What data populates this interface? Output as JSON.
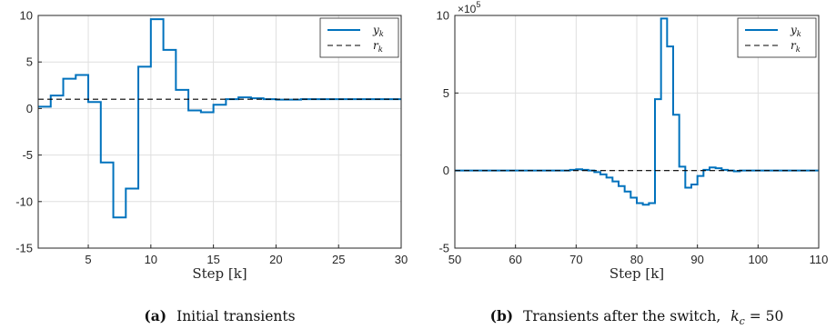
{
  "chart_data": [
    {
      "type": "line",
      "step": true,
      "xlabel": "Step [k]",
      "caption_label": "(a)",
      "caption_text": "Initial transients",
      "xlim": [
        1,
        30
      ],
      "ylim": [
        -15,
        10
      ],
      "xticks": [
        5,
        10,
        15,
        20,
        25,
        30
      ],
      "yticks": [
        10,
        5,
        0,
        -5,
        -10,
        -15
      ],
      "grid": true,
      "legend_position": "top-right",
      "series": [
        {
          "name": "y",
          "name_sub": "k",
          "style": "solid",
          "color": "#0072BD",
          "x": [
            1,
            2,
            3,
            4,
            5,
            6,
            7,
            8,
            9,
            10,
            11,
            12,
            13,
            14,
            15,
            16,
            17,
            18,
            19,
            20,
            21,
            22,
            23,
            24,
            25,
            26,
            27,
            28,
            29,
            30
          ],
          "y": [
            0.2,
            1.4,
            3.2,
            3.6,
            0.7,
            -5.8,
            -11.7,
            -8.6,
            4.5,
            9.6,
            6.3,
            2.0,
            -0.2,
            -0.4,
            0.4,
            1.0,
            1.2,
            1.1,
            1.0,
            0.95,
            0.95,
            1.0,
            1.0,
            1.0,
            1.0,
            1.0,
            1.0,
            1.0,
            1.0,
            1.0
          ]
        },
        {
          "name": "r",
          "name_sub": "k",
          "style": "dashed",
          "color": "#000000",
          "x": [
            1,
            30
          ],
          "y": [
            1,
            1
          ]
        }
      ]
    },
    {
      "type": "line",
      "step": true,
      "xlabel": "Step [k]",
      "caption_label": "(b)",
      "caption_text": "Transients after the switch,",
      "caption_math_var": "k",
      "caption_math_sub": "c",
      "caption_math_rest": " = 50",
      "exponent_base": "×10",
      "exponent_power": "5",
      "xlim": [
        50,
        110
      ],
      "ylim": [
        -5,
        10
      ],
      "xticks": [
        50,
        60,
        70,
        80,
        90,
        100,
        110
      ],
      "yticks": [
        10,
        5,
        0,
        -5
      ],
      "grid": true,
      "legend_position": "top-right",
      "series": [
        {
          "name": "y",
          "name_sub": "k",
          "style": "solid",
          "color": "#0072BD",
          "x": [
            50,
            51,
            52,
            53,
            54,
            55,
            56,
            57,
            58,
            59,
            60,
            61,
            62,
            63,
            64,
            65,
            66,
            67,
            68,
            69,
            70,
            71,
            72,
            73,
            74,
            75,
            76,
            77,
            78,
            79,
            80,
            81,
            82,
            83,
            84,
            85,
            86,
            87,
            88,
            89,
            90,
            91,
            92,
            93,
            94,
            95,
            96,
            97,
            98,
            99,
            100,
            101,
            102,
            103,
            104,
            105,
            106,
            107,
            108,
            109,
            110
          ],
          "y": [
            0,
            0,
            0,
            0,
            0,
            0,
            0,
            0,
            0,
            0,
            0,
            0,
            0,
            0,
            0,
            0,
            0,
            0,
            0,
            0.05,
            0.08,
            0.05,
            0,
            -0.1,
            -0.25,
            -0.45,
            -0.7,
            -1.0,
            -1.35,
            -1.75,
            -2.1,
            -2.2,
            -2.1,
            4.6,
            9.8,
            8.0,
            3.6,
            0.25,
            -1.1,
            -0.9,
            -0.35,
            0.05,
            0.2,
            0.15,
            0.05,
            0,
            -0.05,
            0,
            0,
            0,
            0,
            0,
            0,
            0,
            0,
            0,
            0,
            0,
            0,
            0,
            0
          ]
        },
        {
          "name": "r",
          "name_sub": "k",
          "style": "dashed",
          "color": "#000000",
          "x": [
            50,
            110
          ],
          "y": [
            0,
            0
          ]
        }
      ]
    }
  ]
}
